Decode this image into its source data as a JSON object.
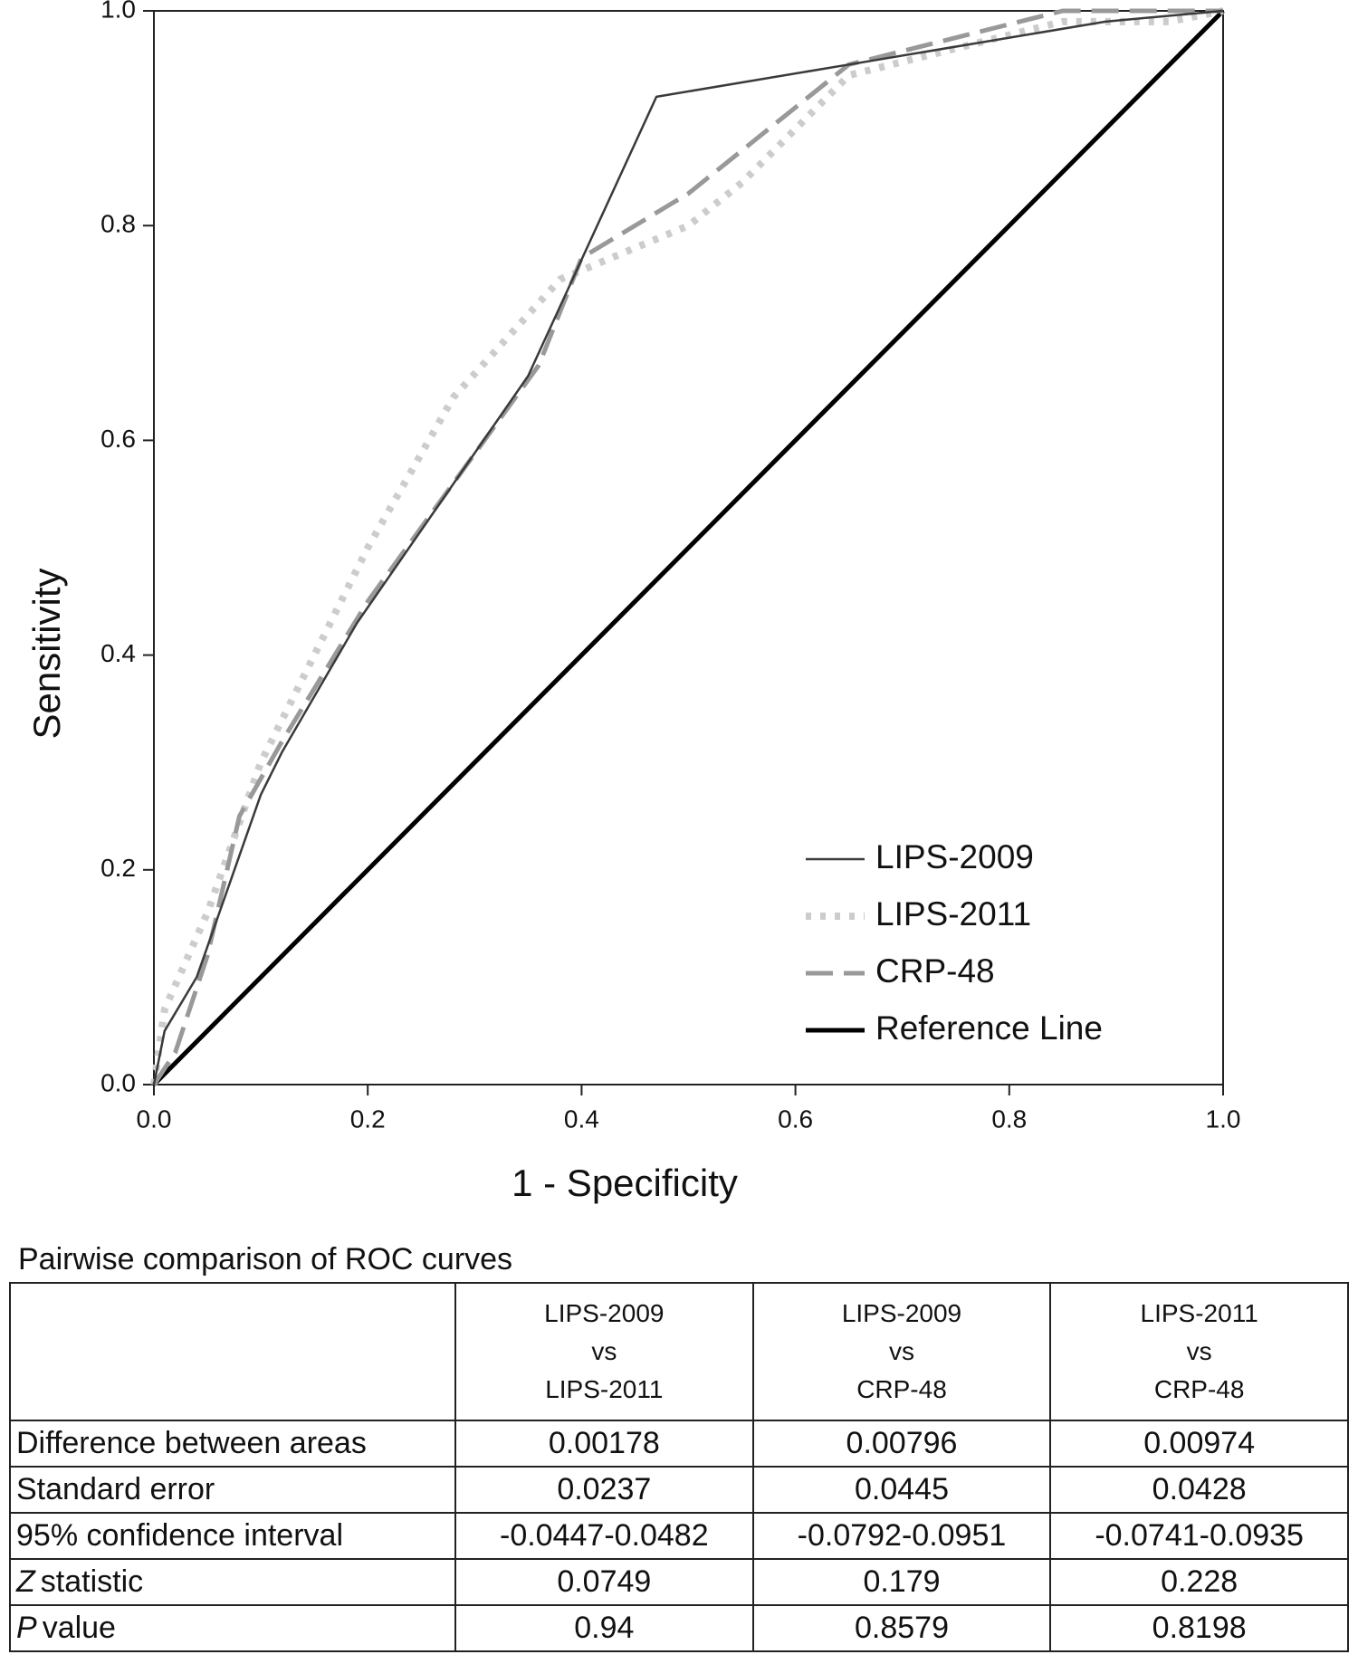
{
  "chart_data": {
    "type": "line",
    "x_label": "1 - Specificity",
    "y_label": "Sensitivity",
    "xlim": [
      0,
      1
    ],
    "ylim": [
      0,
      1
    ],
    "xticks": [
      {
        "value": 0,
        "label": "0.0"
      },
      0.2,
      0.4,
      0.6,
      0.8,
      {
        "value": 1,
        "label": "1.0"
      }
    ],
    "yticks": [
      {
        "value": 0,
        "label": "0.0"
      },
      0.2,
      0.4,
      0.6,
      0.8,
      {
        "value": 1,
        "label": "1.0"
      }
    ],
    "grid": false,
    "legend": "lower right",
    "series": [
      {
        "name": "LIPS-2009",
        "color": "#3a3a3a",
        "style": "solid",
        "x": [
          0,
          0.01,
          0.04,
          0.1,
          0.12,
          0.19,
          0.35,
          0.47,
          0.65,
          0.89,
          1
        ],
        "values": [
          0,
          0.05,
          0.1,
          0.27,
          0.31,
          0.43,
          0.66,
          0.92,
          0.95,
          0.99,
          1
        ]
      },
      {
        "name": "LIPS-2011",
        "color": "#cccccc",
        "style": "dotted",
        "x": [
          0,
          0.01,
          0.05,
          0.1,
          0.2,
          0.28,
          0.38,
          0.5,
          0.55,
          0.65,
          0.85,
          0.95,
          1
        ],
        "values": [
          0,
          0.07,
          0.16,
          0.3,
          0.5,
          0.64,
          0.75,
          0.8,
          0.84,
          0.94,
          0.99,
          0.99,
          1
        ]
      },
      {
        "name": "CRP-48",
        "color": "#999999",
        "style": "dashed",
        "x": [
          0,
          0.02,
          0.05,
          0.08,
          0.12,
          0.2,
          0.36,
          0.4,
          0.5,
          0.65,
          0.85,
          1
        ],
        "values": [
          0,
          0.03,
          0.12,
          0.25,
          0.32,
          0.45,
          0.67,
          0.77,
          0.83,
          0.95,
          1,
          1
        ]
      },
      {
        "name": "Reference Line",
        "color": "#000000",
        "style": "thick",
        "x": [
          0,
          1
        ],
        "values": [
          0,
          1
        ]
      }
    ]
  },
  "table": {
    "title": "Pairwise comparison of ROC curves",
    "headers": [
      [
        "LIPS-2009",
        "vs",
        "LIPS-2011"
      ],
      [
        "LIPS-2009",
        "vs",
        "CRP-48"
      ],
      [
        "LIPS-2011",
        "vs",
        "CRP-48"
      ]
    ],
    "rows": [
      {
        "label": "Difference between areas",
        "values": [
          "0.00178",
          "0.00796",
          "0.00974"
        ]
      },
      {
        "label": "Standard error",
        "values": [
          "0.0237",
          "0.0445",
          "0.0428"
        ]
      },
      {
        "label": "95% confidence interval",
        "values": [
          "-0.0447-0.0482",
          "-0.0792-0.0951",
          "-0.0741-0.0935"
        ]
      },
      {
        "label_italic": "Z",
        "label": "statistic",
        "values": [
          "0.0749",
          "0.179",
          "0.228"
        ]
      },
      {
        "label_italic": "P",
        "label": "value",
        "values": [
          "0.94",
          "0.8579",
          "0.8198"
        ]
      }
    ]
  }
}
